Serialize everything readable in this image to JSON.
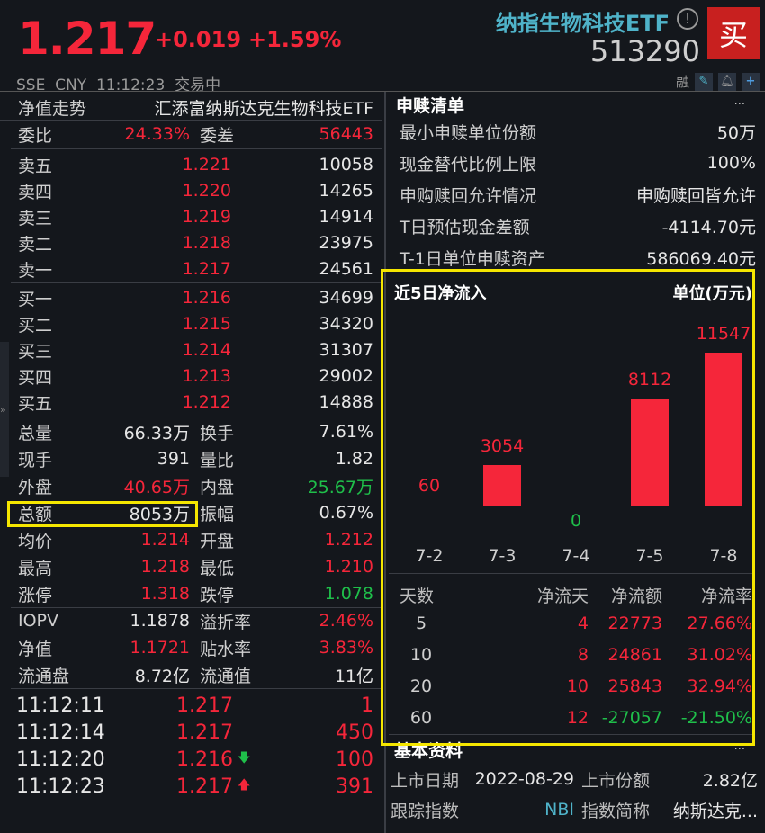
{
  "header": {
    "price": "1.217",
    "change": "+0.019",
    "change_pct": "+1.59%",
    "name": "纳指生物科技ETF",
    "code": "513290",
    "buy_label": "买",
    "exchange": "SSE",
    "currency": "CNY",
    "time": "11:12:23",
    "status": "交易中",
    "margin_label": "融",
    "icons": [
      "info-icon",
      "edit-icon",
      "bell-icon",
      "plus-icon"
    ]
  },
  "left": {
    "title": "净值走势",
    "fund_name": "汇添富纳斯达克生物科技ETF",
    "weibi": {
      "label": "委比",
      "value": "24.33%",
      "label2": "委差",
      "value2": "56443"
    },
    "asks": [
      [
        "卖五",
        "1.221",
        "10058"
      ],
      [
        "卖四",
        "1.220",
        "14265"
      ],
      [
        "卖三",
        "1.219",
        "14914"
      ],
      [
        "卖二",
        "1.218",
        "23975"
      ],
      [
        "卖一",
        "1.217",
        "24561"
      ]
    ],
    "bids": [
      [
        "买一",
        "1.216",
        "34699"
      ],
      [
        "买二",
        "1.215",
        "34320"
      ],
      [
        "买三",
        "1.214",
        "31307"
      ],
      [
        "买四",
        "1.213",
        "29002"
      ],
      [
        "买五",
        "1.212",
        "14888"
      ]
    ],
    "stats": [
      [
        [
          "总量",
          "66.33万",
          "w"
        ],
        [
          "换手",
          "7.61%",
          "w"
        ]
      ],
      [
        [
          "现手",
          "391",
          "w"
        ],
        [
          "量比",
          "1.82",
          "w"
        ]
      ],
      [
        [
          "外盘",
          "40.65万",
          "r"
        ],
        [
          "内盘",
          "25.67万",
          "g"
        ]
      ],
      [
        [
          "总额",
          "8053万",
          "w"
        ],
        [
          "振幅",
          "0.67%",
          "w"
        ]
      ],
      [
        [
          "均价",
          "1.214",
          "r"
        ],
        [
          "开盘",
          "1.212",
          "r"
        ]
      ],
      [
        [
          "最高",
          "1.218",
          "r"
        ],
        [
          "最低",
          "1.210",
          "r"
        ]
      ],
      [
        [
          "涨停",
          "1.318",
          "r"
        ],
        [
          "跌停",
          "1.078",
          "g"
        ]
      ]
    ],
    "nav": [
      [
        [
          "IOPV",
          "1.1878",
          "w"
        ],
        [
          "溢折率",
          "2.46%",
          "r"
        ]
      ],
      [
        [
          "净值",
          "1.1721",
          "r"
        ],
        [
          "贴水率",
          "3.83%",
          "r"
        ]
      ],
      [
        [
          "流通盘",
          "8.72亿",
          "w"
        ],
        [
          "流通值",
          "11亿",
          "w"
        ]
      ]
    ],
    "ticks": [
      [
        "11:12:11",
        "1.217",
        "",
        "1"
      ],
      [
        "11:12:14",
        "1.217",
        "",
        "450"
      ],
      [
        "11:12:20",
        "1.216",
        "down",
        "100"
      ],
      [
        "11:12:23",
        "1.217",
        "up",
        "391"
      ]
    ]
  },
  "right": {
    "redeem_title": "申赎清单",
    "more": "···",
    "redeem": [
      [
        "最小申赎单位份额",
        "50万"
      ],
      [
        "现金替代比例上限",
        "100%"
      ],
      [
        "申购赎回允许情况",
        "申购赎回皆允许"
      ],
      [
        "T日预估现金差额",
        "-4114.70元"
      ],
      [
        "T-1日单位申赎资产",
        "586069.40元"
      ]
    ],
    "flow_title": "近5日净流入",
    "unit": "单位(万元)",
    "table_headers": [
      "天数",
      "净流天",
      "净流额",
      "净流率"
    ],
    "table_rows": [
      [
        "5",
        "4",
        "22773",
        "27.66%"
      ],
      [
        "10",
        "8",
        "24861",
        "31.02%"
      ],
      [
        "20",
        "10",
        "25843",
        "32.94%"
      ],
      [
        "60",
        "12",
        "-27057",
        "-21.50%"
      ]
    ],
    "basic_title": "基本资料",
    "basic": [
      [
        "上市日期",
        "2022-08-29",
        "上市份额",
        "2.82亿"
      ],
      [
        "跟踪指数",
        "NBI",
        "指数简称",
        "纳斯达克..."
      ]
    ]
  },
  "chart_data": {
    "type": "bar",
    "title": "近5日净流入",
    "unit": "单位(万元)",
    "categories": [
      "7-2",
      "7-3",
      "7-4",
      "7-5",
      "7-8"
    ],
    "values": [
      60,
      3054,
      0,
      8112,
      11547
    ],
    "color": "#f5263a",
    "highlight_color": "#f5e600"
  }
}
